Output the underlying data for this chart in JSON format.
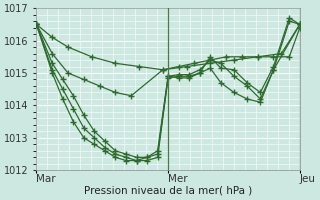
{
  "xlabel": "Pression niveau de la mer( hPa )",
  "ylim": [
    1012,
    1017
  ],
  "yticks": [
    1012,
    1013,
    1014,
    1015,
    1016,
    1017
  ],
  "day_labels": [
    "Mar",
    "Mer",
    "Jeu"
  ],
  "day_positions": [
    0.0,
    0.5,
    1.0
  ],
  "background_color": "#cce8e0",
  "grid_major_color": "#ffffff",
  "grid_minor_color": "#ddf0ea",
  "line_color": "#2d6b2d",
  "marker": "+",
  "markersize": 4,
  "linewidth": 0.9,
  "vertical_line_color": "#4a7a4a",
  "series": [
    {
      "x": [
        0.0,
        0.06,
        0.12,
        0.21,
        0.3,
        0.39,
        0.48,
        0.57,
        0.66,
        0.75,
        0.84,
        0.93,
        1.0
      ],
      "y": [
        1016.5,
        1016.1,
        1015.8,
        1015.5,
        1015.3,
        1015.2,
        1015.1,
        1015.2,
        1015.3,
        1015.4,
        1015.5,
        1015.6,
        1016.5
      ]
    },
    {
      "x": [
        0.0,
        0.06,
        0.12,
        0.18,
        0.24,
        0.3,
        0.36,
        0.48,
        0.54,
        0.6,
        0.66,
        0.72,
        0.78,
        0.84,
        0.9,
        0.96,
        1.0
      ],
      "y": [
        1016.5,
        1015.6,
        1015.0,
        1014.8,
        1014.6,
        1014.4,
        1014.3,
        1015.1,
        1015.2,
        1015.3,
        1015.4,
        1015.5,
        1015.5,
        1015.5,
        1015.5,
        1015.5,
        1016.4
      ]
    },
    {
      "x": [
        0.0,
        0.06,
        0.1,
        0.14,
        0.18,
        0.22,
        0.26,
        0.3,
        0.34,
        0.38,
        0.42,
        0.46,
        0.5,
        0.54,
        0.58,
        0.62,
        0.66,
        0.7,
        0.75,
        0.8,
        0.85,
        0.9,
        1.0
      ],
      "y": [
        1016.5,
        1015.3,
        1014.8,
        1014.3,
        1013.7,
        1013.2,
        1012.9,
        1012.6,
        1012.5,
        1012.4,
        1012.4,
        1012.5,
        1014.9,
        1014.85,
        1014.85,
        1015.0,
        1015.15,
        1014.7,
        1014.4,
        1014.2,
        1014.1,
        1015.1,
        1016.5
      ]
    },
    {
      "x": [
        0.0,
        0.06,
        0.1,
        0.14,
        0.18,
        0.22,
        0.26,
        0.3,
        0.34,
        0.38,
        0.42,
        0.46,
        0.5,
        0.54,
        0.58,
        0.62,
        0.66,
        0.7,
        0.75,
        0.8,
        0.85,
        0.9,
        0.96,
        1.0
      ],
      "y": [
        1016.5,
        1015.0,
        1014.2,
        1013.5,
        1013.0,
        1012.8,
        1012.6,
        1012.4,
        1012.3,
        1012.3,
        1012.4,
        1012.6,
        1014.9,
        1014.95,
        1014.95,
        1015.1,
        1015.4,
        1015.3,
        1014.9,
        1014.6,
        1014.2,
        1015.1,
        1016.6,
        1016.5
      ]
    },
    {
      "x": [
        0.0,
        0.06,
        0.1,
        0.14,
        0.18,
        0.22,
        0.26,
        0.3,
        0.34,
        0.38,
        0.42,
        0.46,
        0.5,
        0.54,
        0.58,
        0.62,
        0.66,
        0.7,
        0.75,
        0.8,
        0.85,
        0.9,
        0.96,
        1.0
      ],
      "y": [
        1016.5,
        1015.1,
        1014.5,
        1013.9,
        1013.3,
        1013.0,
        1012.7,
        1012.5,
        1012.4,
        1012.3,
        1012.3,
        1012.4,
        1014.85,
        1014.9,
        1014.9,
        1015.0,
        1015.5,
        1015.15,
        1015.1,
        1014.7,
        1014.4,
        1015.2,
        1016.7,
        1016.5
      ]
    }
  ]
}
